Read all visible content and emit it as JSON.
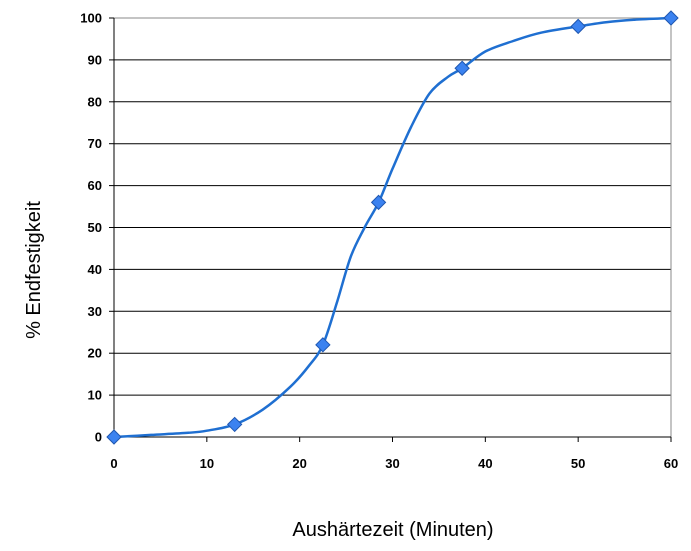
{
  "chart_data": {
    "type": "line",
    "title": "",
    "xlabel": "Aushärtezeit (Minuten)",
    "ylabel": "% Endfestigkeit",
    "xlim": [
      0,
      60
    ],
    "ylim": [
      0,
      100
    ],
    "xticks": [
      0,
      10,
      20,
      30,
      40,
      50,
      60
    ],
    "yticks": [
      0,
      10,
      20,
      30,
      40,
      50,
      60,
      70,
      80,
      90,
      100
    ],
    "grid": "horizontal",
    "legend": "none",
    "line_color": "#1f6fd1",
    "marker_color": "#3b82f0",
    "series": [
      {
        "marker": "diamond",
        "markers_x": [
          0,
          13,
          22.5,
          28.5,
          37.5,
          50,
          60
        ],
        "markers_y": [
          0,
          3,
          22,
          56,
          88,
          98,
          100
        ],
        "curve_x": [
          0,
          4,
          8,
          10,
          13,
          16,
          19,
          21,
          22.5,
          24,
          25.5,
          27,
          28.5,
          30,
          32,
          34,
          36,
          37.5,
          40,
          43,
          46,
          50,
          53,
          56,
          60
        ],
        "curve_y": [
          0,
          0.5,
          1,
          1.5,
          3,
          6.5,
          12,
          17,
          22,
          32,
          43,
          50,
          56,
          64,
          74,
          82,
          86,
          88,
          92,
          94.5,
          96.5,
          98,
          99,
          99.6,
          100
        ]
      }
    ]
  }
}
